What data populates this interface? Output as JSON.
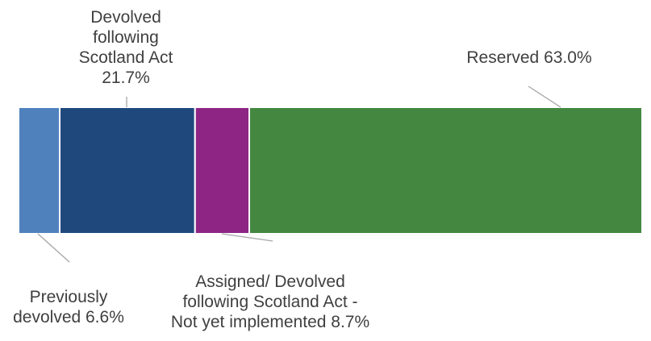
{
  "chart_data": {
    "type": "bar",
    "orientation": "horizontal",
    "stacked": true,
    "unit": "%",
    "grid": false,
    "legend": "none",
    "segments": [
      {
        "label_lines": [
          "Previously",
          "devolved 6.6%"
        ],
        "value": 6.6,
        "color": "#4F81BD"
      },
      {
        "label_lines": [
          "Devolved",
          "following",
          "Scotland Act",
          "21.7%"
        ],
        "value": 21.7,
        "color": "#1F497D"
      },
      {
        "label_lines": [
          "Assigned/ Devolved",
          "following Scotland Act -",
          "Not yet implemented 8.7%"
        ],
        "value": 8.7,
        "color": "#8E2585"
      },
      {
        "label_lines": [
          "Reserved 63.0%"
        ],
        "value": 63.0,
        "color": "#438741"
      }
    ]
  }
}
